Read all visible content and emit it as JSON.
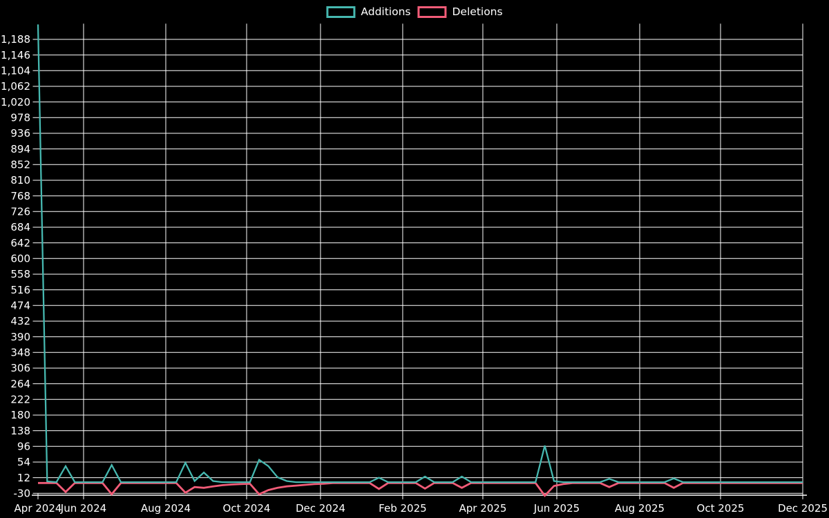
{
  "chart_data": {
    "type": "line",
    "title": "",
    "legend": [
      {
        "label": "Additions",
        "color": "#46b8b0"
      },
      {
        "label": "Deletions",
        "color": "#f25c78"
      }
    ],
    "colors": {
      "background": "#000000",
      "grid": "#ffffff",
      "text": "#ffffff",
      "additions_line": "#46b8b0",
      "deletions_line": "#f25c78"
    },
    "y_axis": {
      "min": -30,
      "max": 1230,
      "tick_step": 42,
      "grid": true
    },
    "y_ticks": [
      {
        "value": 1188,
        "label": "1,188"
      },
      {
        "value": 1146,
        "label": "1,146"
      },
      {
        "value": 1104,
        "label": "1,104"
      },
      {
        "value": 1062,
        "label": "1,062"
      },
      {
        "value": 1020,
        "label": "1,020"
      },
      {
        "value": 978,
        "label": "978"
      },
      {
        "value": 936,
        "label": "936"
      },
      {
        "value": 894,
        "label": "894"
      },
      {
        "value": 852,
        "label": "852"
      },
      {
        "value": 810,
        "label": "810"
      },
      {
        "value": 768,
        "label": "768"
      },
      {
        "value": 726,
        "label": "726"
      },
      {
        "value": 684,
        "label": "684"
      },
      {
        "value": 642,
        "label": "642"
      },
      {
        "value": 600,
        "label": "600"
      },
      {
        "value": 558,
        "label": "558"
      },
      {
        "value": 516,
        "label": "516"
      },
      {
        "value": 474,
        "label": "474"
      },
      {
        "value": 432,
        "label": "432"
      },
      {
        "value": 390,
        "label": "390"
      },
      {
        "value": 348,
        "label": "348"
      },
      {
        "value": 306,
        "label": "306"
      },
      {
        "value": 264,
        "label": "264"
      },
      {
        "value": 222,
        "label": "222"
      },
      {
        "value": 180,
        "label": "180"
      },
      {
        "value": 138,
        "label": "138"
      },
      {
        "value": 96,
        "label": "96"
      },
      {
        "value": 54,
        "label": "54"
      },
      {
        "value": 12,
        "label": "12"
      },
      {
        "value": -30,
        "label": "-30"
      }
    ],
    "x_ticks": [
      {
        "label": "Apr 2024",
        "pos": 0.0
      },
      {
        "label": "Jun 2024",
        "pos": 0.0596
      },
      {
        "label": "Aug 2024",
        "pos": 0.1671
      },
      {
        "label": "Oct 2024",
        "pos": 0.2728
      },
      {
        "label": "Dec 2024",
        "pos": 0.3694
      },
      {
        "label": "Feb 2025",
        "pos": 0.4769
      },
      {
        "label": "Apr 2025",
        "pos": 0.5817
      },
      {
        "label": "Jun 2025",
        "pos": 0.6784
      },
      {
        "label": "Aug 2025",
        "pos": 0.7868
      },
      {
        "label": "Oct 2025",
        "pos": 0.8925
      },
      {
        "label": "Dec 2025",
        "pos": 1.0
      }
    ],
    "series": {
      "x_unit": "week",
      "weeks": 84,
      "range_labels": {
        "start": "Apr 2024",
        "end": "Dec 2025"
      },
      "default": {
        "additions": 0,
        "deletions": 0
      },
      "nonzero": [
        {
          "week": 0,
          "additions": 1228,
          "deletions": 0
        },
        {
          "week": 1,
          "additions": 2,
          "deletions": 0
        },
        {
          "week": 3,
          "additions": 43,
          "deletions": -24
        },
        {
          "week": 8,
          "additions": 46,
          "deletions": -30
        },
        {
          "week": 16,
          "additions": 52,
          "deletions": -26
        },
        {
          "week": 17,
          "additions": 3,
          "deletions": -11
        },
        {
          "week": 18,
          "additions": 26,
          "deletions": -13
        },
        {
          "week": 19,
          "additions": 3,
          "deletions": -9
        },
        {
          "week": 20,
          "additions": 0,
          "deletions": -6
        },
        {
          "week": 21,
          "additions": 0,
          "deletions": -4
        },
        {
          "week": 22,
          "additions": 0,
          "deletions": -3
        },
        {
          "week": 23,
          "additions": 0,
          "deletions": -2
        },
        {
          "week": 24,
          "additions": 60,
          "deletions": -30
        },
        {
          "week": 25,
          "additions": 43,
          "deletions": -19
        },
        {
          "week": 26,
          "additions": 13,
          "deletions": -13
        },
        {
          "week": 27,
          "additions": 3,
          "deletions": -9
        },
        {
          "week": 28,
          "additions": 0,
          "deletions": -7
        },
        {
          "week": 29,
          "additions": 0,
          "deletions": -5
        },
        {
          "week": 30,
          "additions": 0,
          "deletions": -3
        },
        {
          "week": 31,
          "additions": 0,
          "deletions": -2
        },
        {
          "week": 37,
          "additions": 12,
          "deletions": -16
        },
        {
          "week": 42,
          "additions": 15,
          "deletions": -15
        },
        {
          "week": 46,
          "additions": 15,
          "deletions": -13
        },
        {
          "week": 55,
          "additions": 98,
          "deletions": -34
        },
        {
          "week": 56,
          "additions": 3,
          "deletions": -8
        },
        {
          "week": 57,
          "additions": 0,
          "deletions": -3
        },
        {
          "week": 62,
          "additions": 9,
          "deletions": -11
        },
        {
          "week": 69,
          "additions": 10,
          "deletions": -13
        }
      ]
    }
  }
}
